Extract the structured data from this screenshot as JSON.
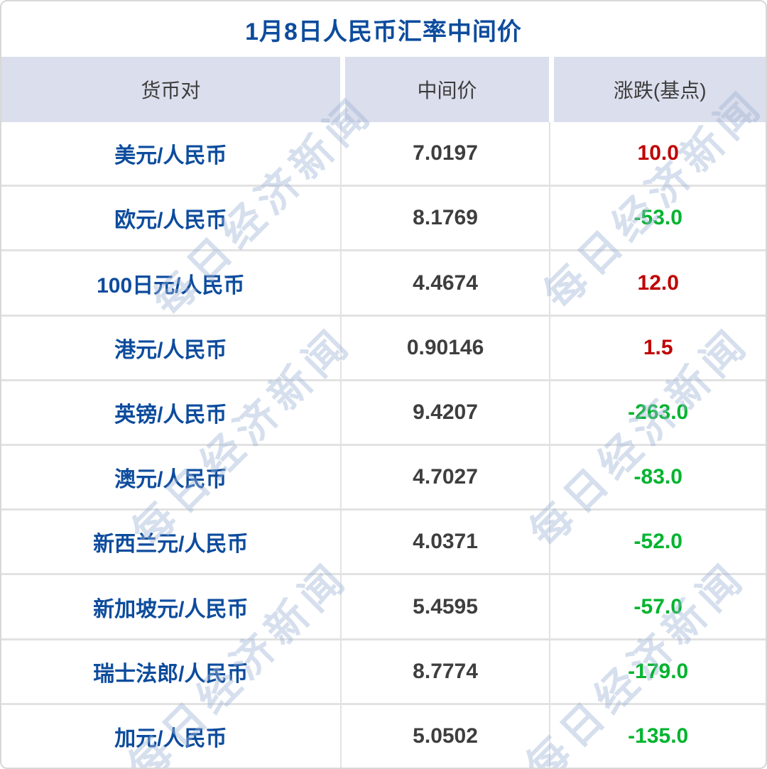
{
  "title": "1月8日人民币汇率中间价",
  "table": {
    "columns": [
      "货币对",
      "中间价",
      "涨跌(基点)"
    ],
    "rows": [
      {
        "pair": "美元/人民币",
        "mid": "7.0197",
        "change": "10.0",
        "direction": "up"
      },
      {
        "pair": "欧元/人民币",
        "mid": "8.1769",
        "change": "-53.0",
        "direction": "down"
      },
      {
        "pair": "100日元/人民币",
        "mid": "4.4674",
        "change": "12.0",
        "direction": "up"
      },
      {
        "pair": "港元/人民币",
        "mid": "0.90146",
        "change": "1.5",
        "direction": "up"
      },
      {
        "pair": "英镑/人民币",
        "mid": "9.4207",
        "change": "-263.0",
        "direction": "down"
      },
      {
        "pair": "澳元/人民币",
        "mid": "4.7027",
        "change": "-83.0",
        "direction": "down"
      },
      {
        "pair": "新西兰元/人民币",
        "mid": "4.0371",
        "change": "-52.0",
        "direction": "down"
      },
      {
        "pair": "新加坡元/人民币",
        "mid": "5.4595",
        "change": "-57.0",
        "direction": "down"
      },
      {
        "pair": "瑞士法郎/人民币",
        "mid": "8.7774",
        "change": "-179.0",
        "direction": "down"
      },
      {
        "pair": "加元/人民币",
        "mid": "5.0502",
        "change": "-135.0",
        "direction": "down"
      }
    ]
  },
  "watermark": {
    "text": "每日经济新闻"
  },
  "colors": {
    "title_blue": "#0d4c9d",
    "pair_blue": "#0d4c9d",
    "up_red": "#c00000",
    "down_green": "#00b42e",
    "header_bg": "#dbdeec",
    "mid_value_gray": "#3e3e3e",
    "watermark_blue": "#9eb2d4"
  },
  "chart_data": {
    "type": "table",
    "title": "1月8日人民币汇率中间价",
    "columns": [
      "货币对",
      "中间价",
      "涨跌(基点)"
    ],
    "rows": [
      [
        "美元/人民币",
        7.0197,
        10.0
      ],
      [
        "欧元/人民币",
        8.1769,
        -53.0
      ],
      [
        "100日元/人民币",
        4.4674,
        12.0
      ],
      [
        "港元/人民币",
        0.90146,
        1.5
      ],
      [
        "英镑/人民币",
        9.4207,
        -263.0
      ],
      [
        "澳元/人民币",
        4.7027,
        -83.0
      ],
      [
        "新西兰元/人民币",
        4.0371,
        -52.0
      ],
      [
        "新加坡元/人民币",
        5.4595,
        -57.0
      ],
      [
        "瑞士法郎/人民币",
        8.7774,
        -179.0
      ],
      [
        "加元/人民币",
        5.0502,
        -135.0
      ]
    ],
    "layout": {
      "positive_change_color": "#c00000",
      "negative_change_color": "#00b42e",
      "header_background": "#dbdeec"
    }
  }
}
